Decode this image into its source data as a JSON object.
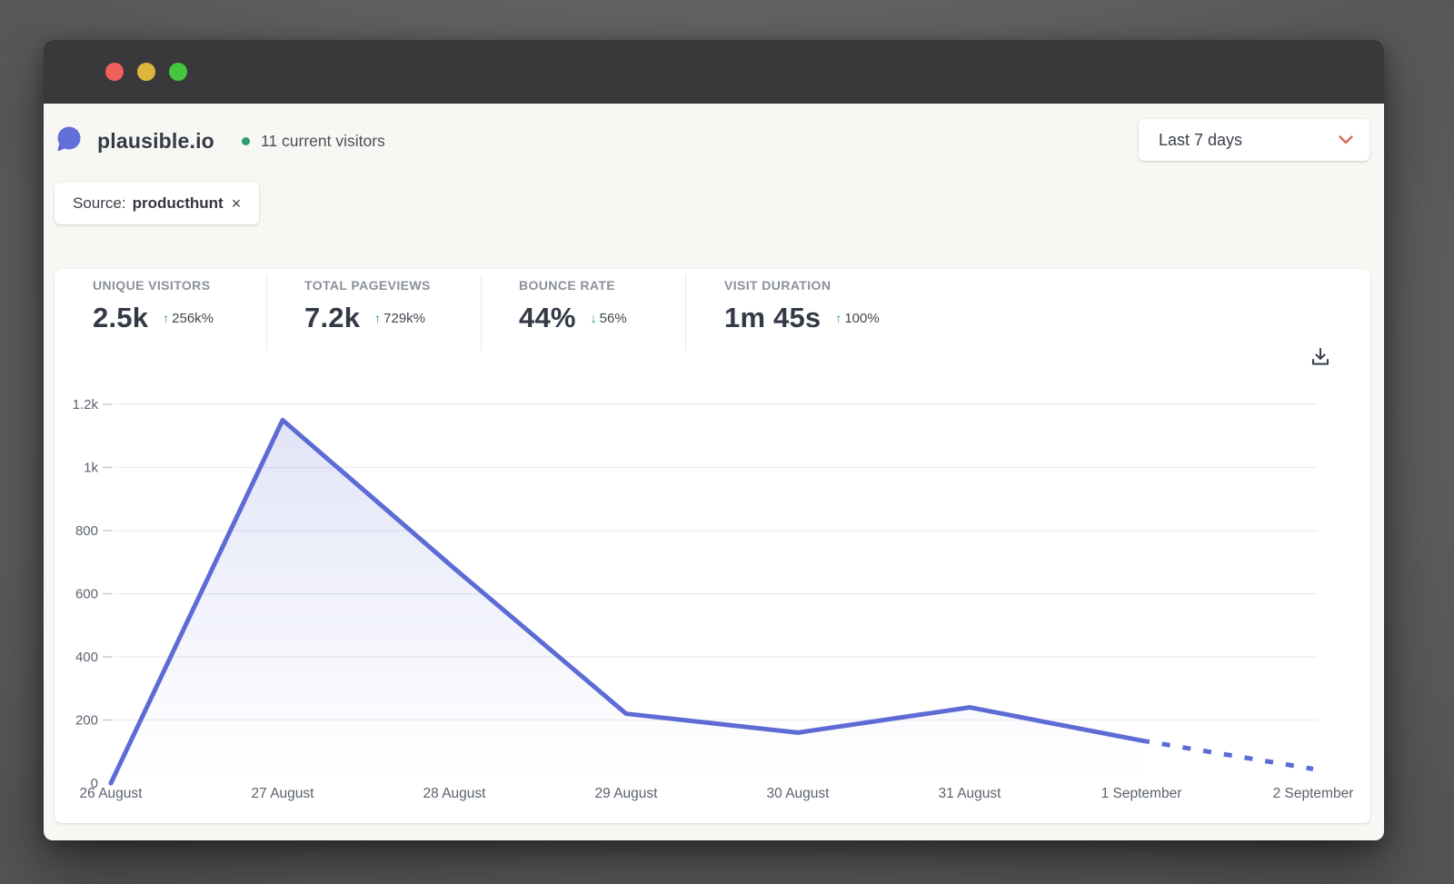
{
  "window": {
    "traffic_lights": [
      {
        "name": "close",
        "color": "#f2605b"
      },
      {
        "name": "minimize",
        "color": "#dfb63d"
      },
      {
        "name": "zoom",
        "color": "#44c63f"
      }
    ]
  },
  "header": {
    "site_name": "plausible.io",
    "visitors_label": "11 current visitors",
    "date_range_label": "Last 7 days"
  },
  "filter_chip": {
    "prefix": "Source:",
    "value": "producthunt",
    "remove": "×"
  },
  "stats": [
    {
      "label": "UNIQUE VISITORS",
      "value": "2.5k",
      "arrow": "↑",
      "direction": "up",
      "change": "256k%"
    },
    {
      "label": "TOTAL PAGEVIEWS",
      "value": "7.2k",
      "arrow": "↑",
      "direction": "up",
      "change": "729k%"
    },
    {
      "label": "BOUNCE RATE",
      "value": "44%",
      "arrow": "↓",
      "direction": "down",
      "change": "56%"
    },
    {
      "label": "VISIT DURATION",
      "value": "1m 45s",
      "arrow": "↑",
      "direction": "up",
      "change": "100%"
    }
  ],
  "chart_data": {
    "type": "line",
    "x": [
      "26 August",
      "27 August",
      "28 August",
      "29 August",
      "30 August",
      "31 August",
      "1 September",
      "2 September"
    ],
    "series": [
      {
        "name": "visitors",
        "values": [
          0,
          1150,
          680,
          220,
          160,
          240,
          135,
          45
        ]
      }
    ],
    "dashed_from_index": 6,
    "ylim": [
      0,
      1200
    ],
    "yticks": [
      0,
      200,
      400,
      600,
      800,
      1000,
      1200
    ],
    "ytick_labels": [
      "0",
      "200",
      "400",
      "600",
      "800",
      "1k",
      "1.2k"
    ],
    "grid": true,
    "legend": false,
    "line_color": "#5d6bd5",
    "fill_color": "#5d6bd5",
    "fill_opacity_top": 0.18
  },
  "colors": {
    "accent_indigo": "#636fd8",
    "positive_green": "#27a269",
    "chevron_red": "#dd6a5d",
    "grid_line": "#ececf2",
    "axis_text": "#5c636e"
  }
}
